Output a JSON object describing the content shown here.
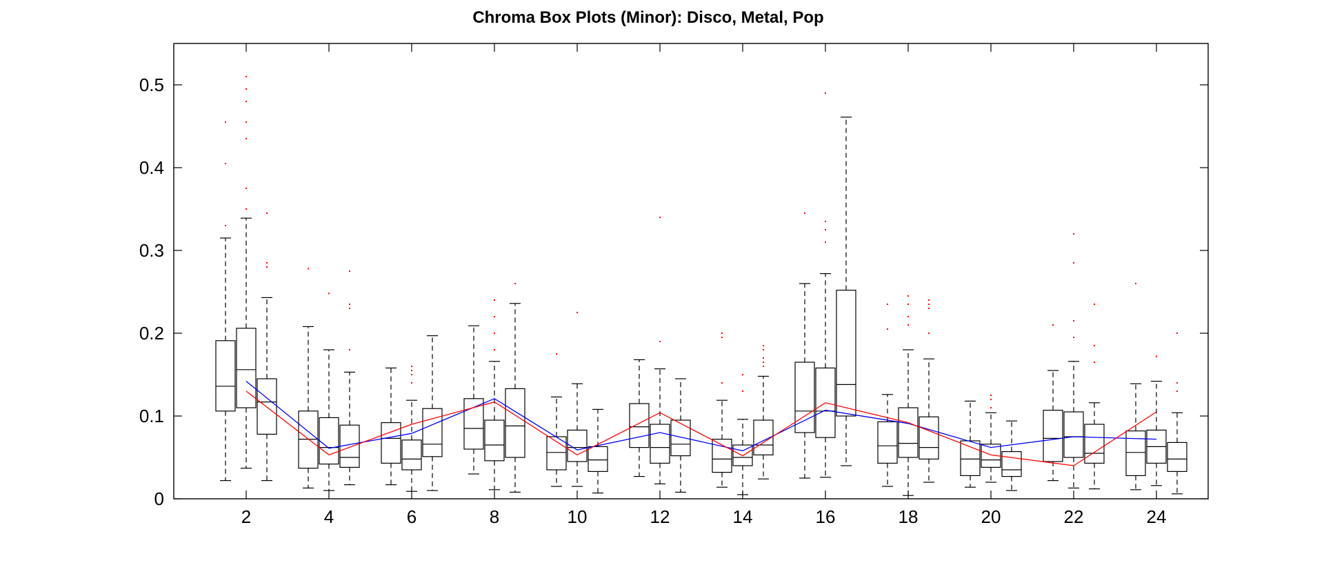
{
  "chart_data": {
    "type": "box",
    "title": "Chroma Box Plots (Minor): Disco, Metal, Pop",
    "xlabel": "",
    "ylabel": "",
    "xlim": [
      0.25,
      25.25
    ],
    "ylim": [
      0,
      0.55
    ],
    "x_ticks": [
      2,
      4,
      6,
      8,
      10,
      12,
      14,
      16,
      18,
      20,
      22,
      24
    ],
    "y_ticks": [
      0,
      0.1,
      0.2,
      0.3,
      0.4,
      0.5
    ],
    "grid": false,
    "legend": "none",
    "box_color": "#000000",
    "outlier_color": "#ff0000",
    "whisker_style": "dashed",
    "boxes": [
      {
        "x": 1.5,
        "lw": 0.022,
        "q1": 0.106,
        "med": 0.136,
        "q3": 0.191,
        "uw": 0.315,
        "outliers": [
          0.33,
          0.405,
          0.455
        ]
      },
      {
        "x": 2.0,
        "lw": 0.037,
        "q1": 0.11,
        "med": 0.156,
        "q3": 0.206,
        "uw": 0.339,
        "outliers": [
          0.35,
          0.375,
          0.435,
          0.455,
          0.48,
          0.495,
          0.51
        ]
      },
      {
        "x": 2.5,
        "lw": 0.022,
        "q1": 0.078,
        "med": 0.117,
        "q3": 0.145,
        "uw": 0.243,
        "outliers": [
          0.28,
          0.285,
          0.345
        ]
      },
      {
        "x": 3.5,
        "lw": 0.013,
        "q1": 0.037,
        "med": 0.072,
        "q3": 0.106,
        "uw": 0.208,
        "outliers": [
          0.278
        ]
      },
      {
        "x": 4.0,
        "lw": 0.01,
        "q1": 0.042,
        "med": 0.062,
        "q3": 0.098,
        "uw": 0.18,
        "outliers": [
          0.248
        ]
      },
      {
        "x": 4.5,
        "lw": 0.017,
        "q1": 0.038,
        "med": 0.05,
        "q3": 0.089,
        "uw": 0.153,
        "outliers": [
          0.18,
          0.23,
          0.235,
          0.275
        ]
      },
      {
        "x": 5.5,
        "lw": 0.017,
        "q1": 0.043,
        "med": 0.073,
        "q3": 0.092,
        "uw": 0.158,
        "outliers": []
      },
      {
        "x": 6.0,
        "lw": 0.009,
        "q1": 0.035,
        "med": 0.048,
        "q3": 0.071,
        "uw": 0.119,
        "outliers": [
          0.14,
          0.15,
          0.155,
          0.16
        ]
      },
      {
        "x": 6.5,
        "lw": 0.01,
        "q1": 0.051,
        "med": 0.066,
        "q3": 0.109,
        "uw": 0.197,
        "outliers": []
      },
      {
        "x": 7.5,
        "lw": 0.03,
        "q1": 0.06,
        "med": 0.085,
        "q3": 0.121,
        "uw": 0.209,
        "outliers": []
      },
      {
        "x": 8.0,
        "lw": 0.011,
        "q1": 0.046,
        "med": 0.065,
        "q3": 0.095,
        "uw": 0.166,
        "outliers": [
          0.18,
          0.2,
          0.22,
          0.24
        ]
      },
      {
        "x": 8.5,
        "lw": 0.008,
        "q1": 0.05,
        "med": 0.088,
        "q3": 0.133,
        "uw": 0.236,
        "outliers": [
          0.26
        ]
      },
      {
        "x": 9.5,
        "lw": 0.015,
        "q1": 0.035,
        "med": 0.056,
        "q3": 0.075,
        "uw": 0.123,
        "outliers": [
          0.175
        ]
      },
      {
        "x": 10.0,
        "lw": 0.015,
        "q1": 0.045,
        "med": 0.062,
        "q3": 0.083,
        "uw": 0.139,
        "outliers": [
          0.225
        ]
      },
      {
        "x": 10.5,
        "lw": 0.007,
        "q1": 0.033,
        "med": 0.047,
        "q3": 0.063,
        "uw": 0.108,
        "outliers": []
      },
      {
        "x": 11.5,
        "lw": 0.027,
        "q1": 0.062,
        "med": 0.087,
        "q3": 0.115,
        "uw": 0.168,
        "outliers": []
      },
      {
        "x": 12.0,
        "lw": 0.018,
        "q1": 0.043,
        "med": 0.062,
        "q3": 0.09,
        "uw": 0.157,
        "outliers": [
          0.19,
          0.34
        ]
      },
      {
        "x": 12.5,
        "lw": 0.008,
        "q1": 0.052,
        "med": 0.066,
        "q3": 0.095,
        "uw": 0.145,
        "outliers": []
      },
      {
        "x": 13.5,
        "lw": 0.014,
        "q1": 0.032,
        "med": 0.048,
        "q3": 0.072,
        "uw": 0.119,
        "outliers": [
          0.14,
          0.195,
          0.2
        ]
      },
      {
        "x": 14.0,
        "lw": 0.005,
        "q1": 0.04,
        "med": 0.05,
        "q3": 0.065,
        "uw": 0.096,
        "outliers": [
          0.13,
          0.15
        ]
      },
      {
        "x": 14.5,
        "lw": 0.024,
        "q1": 0.053,
        "med": 0.065,
        "q3": 0.095,
        "uw": 0.148,
        "outliers": [
          0.16,
          0.165,
          0.17,
          0.18,
          0.185
        ]
      },
      {
        "x": 15.5,
        "lw": 0.025,
        "q1": 0.08,
        "med": 0.106,
        "q3": 0.165,
        "uw": 0.26,
        "outliers": [
          0.345
        ]
      },
      {
        "x": 16.0,
        "lw": 0.026,
        "q1": 0.074,
        "med": 0.106,
        "q3": 0.158,
        "uw": 0.272,
        "outliers": [
          0.31,
          0.325,
          0.335,
          0.49
        ]
      },
      {
        "x": 16.5,
        "lw": 0.04,
        "q1": 0.1,
        "med": 0.138,
        "q3": 0.252,
        "uw": 0.461,
        "outliers": []
      },
      {
        "x": 17.5,
        "lw": 0.015,
        "q1": 0.043,
        "med": 0.064,
        "q3": 0.093,
        "uw": 0.126,
        "outliers": [
          0.205,
          0.235
        ]
      },
      {
        "x": 18.0,
        "lw": 0.004,
        "q1": 0.05,
        "med": 0.067,
        "q3": 0.11,
        "uw": 0.18,
        "outliers": [
          0.21,
          0.22,
          0.235,
          0.245
        ]
      },
      {
        "x": 18.5,
        "lw": 0.02,
        "q1": 0.048,
        "med": 0.062,
        "q3": 0.099,
        "uw": 0.169,
        "outliers": [
          0.2,
          0.23,
          0.235,
          0.24
        ]
      },
      {
        "x": 19.5,
        "lw": 0.014,
        "q1": 0.028,
        "med": 0.048,
        "q3": 0.07,
        "uw": 0.118,
        "outliers": []
      },
      {
        "x": 20.0,
        "lw": 0.02,
        "q1": 0.038,
        "med": 0.047,
        "q3": 0.066,
        "uw": 0.104,
        "outliers": [
          0.11,
          0.12,
          0.125
        ]
      },
      {
        "x": 20.5,
        "lw": 0.01,
        "q1": 0.027,
        "med": 0.035,
        "q3": 0.057,
        "uw": 0.094,
        "outliers": []
      },
      {
        "x": 21.5,
        "lw": 0.022,
        "q1": 0.045,
        "med": 0.073,
        "q3": 0.107,
        "uw": 0.155,
        "outliers": [
          0.21
        ]
      },
      {
        "x": 22.0,
        "lw": 0.013,
        "q1": 0.05,
        "med": 0.075,
        "q3": 0.105,
        "uw": 0.166,
        "outliers": [
          0.195,
          0.215,
          0.285,
          0.32
        ]
      },
      {
        "x": 22.5,
        "lw": 0.012,
        "q1": 0.043,
        "med": 0.055,
        "q3": 0.09,
        "uw": 0.116,
        "outliers": [
          0.165,
          0.185,
          0.235
        ]
      },
      {
        "x": 23.5,
        "lw": 0.011,
        "q1": 0.028,
        "med": 0.056,
        "q3": 0.082,
        "uw": 0.139,
        "outliers": [
          0.26
        ]
      },
      {
        "x": 24.0,
        "lw": 0.016,
        "q1": 0.043,
        "med": 0.063,
        "q3": 0.083,
        "uw": 0.142,
        "outliers": [
          0.172
        ]
      },
      {
        "x": 24.5,
        "lw": 0.006,
        "q1": 0.033,
        "med": 0.048,
        "q3": 0.068,
        "uw": 0.104,
        "outliers": [
          0.13,
          0.14,
          0.2
        ]
      }
    ],
    "series": [
      {
        "color": "#0000ff",
        "x": [
          2,
          4,
          6,
          8,
          10,
          12,
          14,
          16,
          18,
          20,
          22,
          24
        ],
        "values": [
          0.142,
          0.061,
          0.079,
          0.121,
          0.059,
          0.08,
          0.058,
          0.107,
          0.091,
          0.062,
          0.075,
          0.072
        ]
      },
      {
        "color": "#ff0000",
        "x": [
          2,
          4,
          6,
          8,
          10,
          12,
          14,
          16,
          18,
          20,
          22,
          24
        ],
        "values": [
          0.13,
          0.053,
          0.09,
          0.117,
          0.053,
          0.104,
          0.052,
          0.116,
          0.092,
          0.053,
          0.04,
          0.105
        ]
      }
    ]
  }
}
